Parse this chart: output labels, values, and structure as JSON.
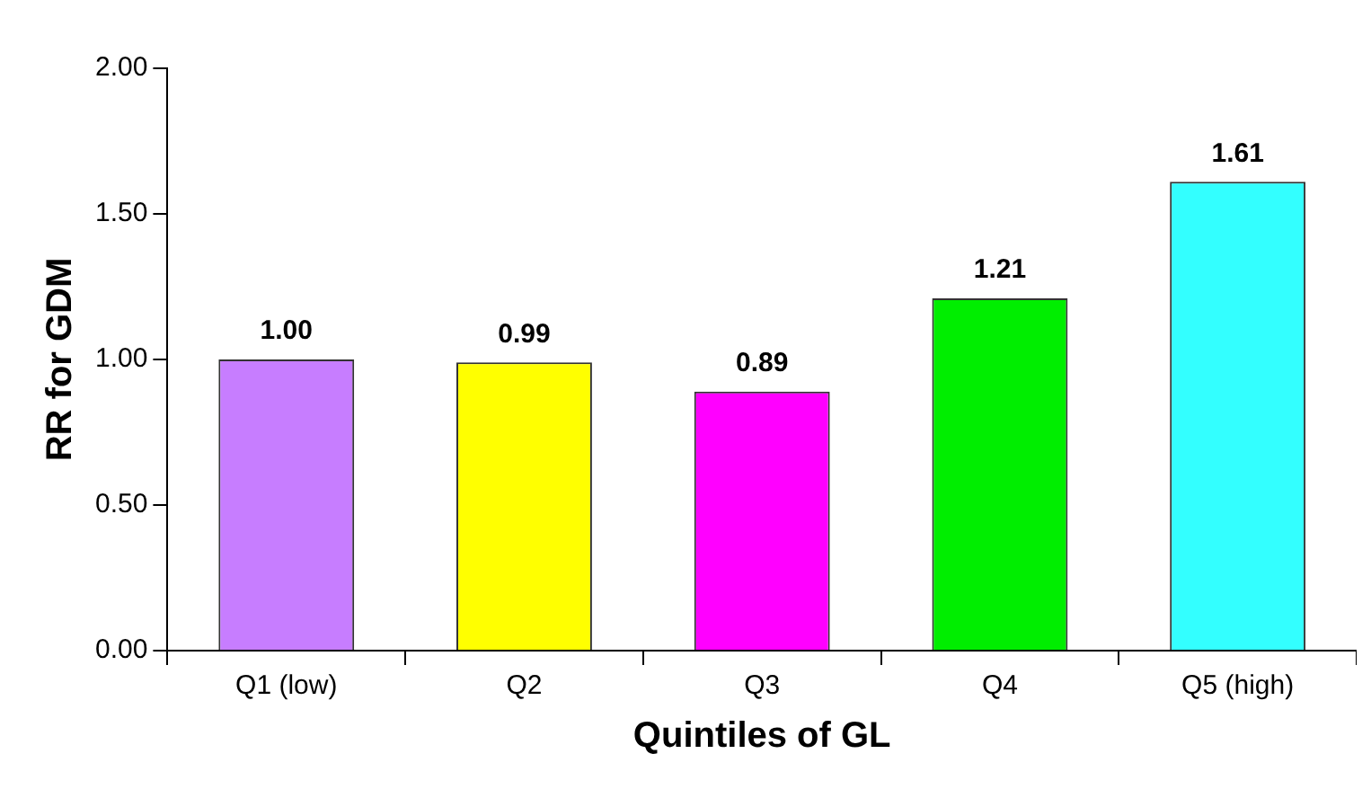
{
  "chart_data": {
    "type": "bar",
    "xlabel": "Quintiles of GL",
    "ylabel": "RR for GDM",
    "categories": [
      "Q1 (low)",
      "Q2",
      "Q3",
      "Q4",
      "Q5 (high)"
    ],
    "values": [
      1.0,
      0.99,
      0.89,
      1.21,
      1.61
    ],
    "colors": [
      "#c77dff",
      "#ffff00",
      "#ff00ff",
      "#00ee00",
      "#33ffff"
    ],
    "value_labels": [
      "1.00",
      "0.99",
      "0.89",
      "1.21",
      "1.61"
    ],
    "ylim": [
      0,
      2
    ],
    "yticks": [
      {
        "value": 0,
        "label": "0.00"
      },
      {
        "value": 0.5,
        "label": "0.50"
      },
      {
        "value": 1,
        "label": "1.00"
      },
      {
        "value": 1.5,
        "label": "1.50"
      },
      {
        "value": 2,
        "label": "2.00"
      }
    ],
    "grid": false,
    "legend": false
  }
}
